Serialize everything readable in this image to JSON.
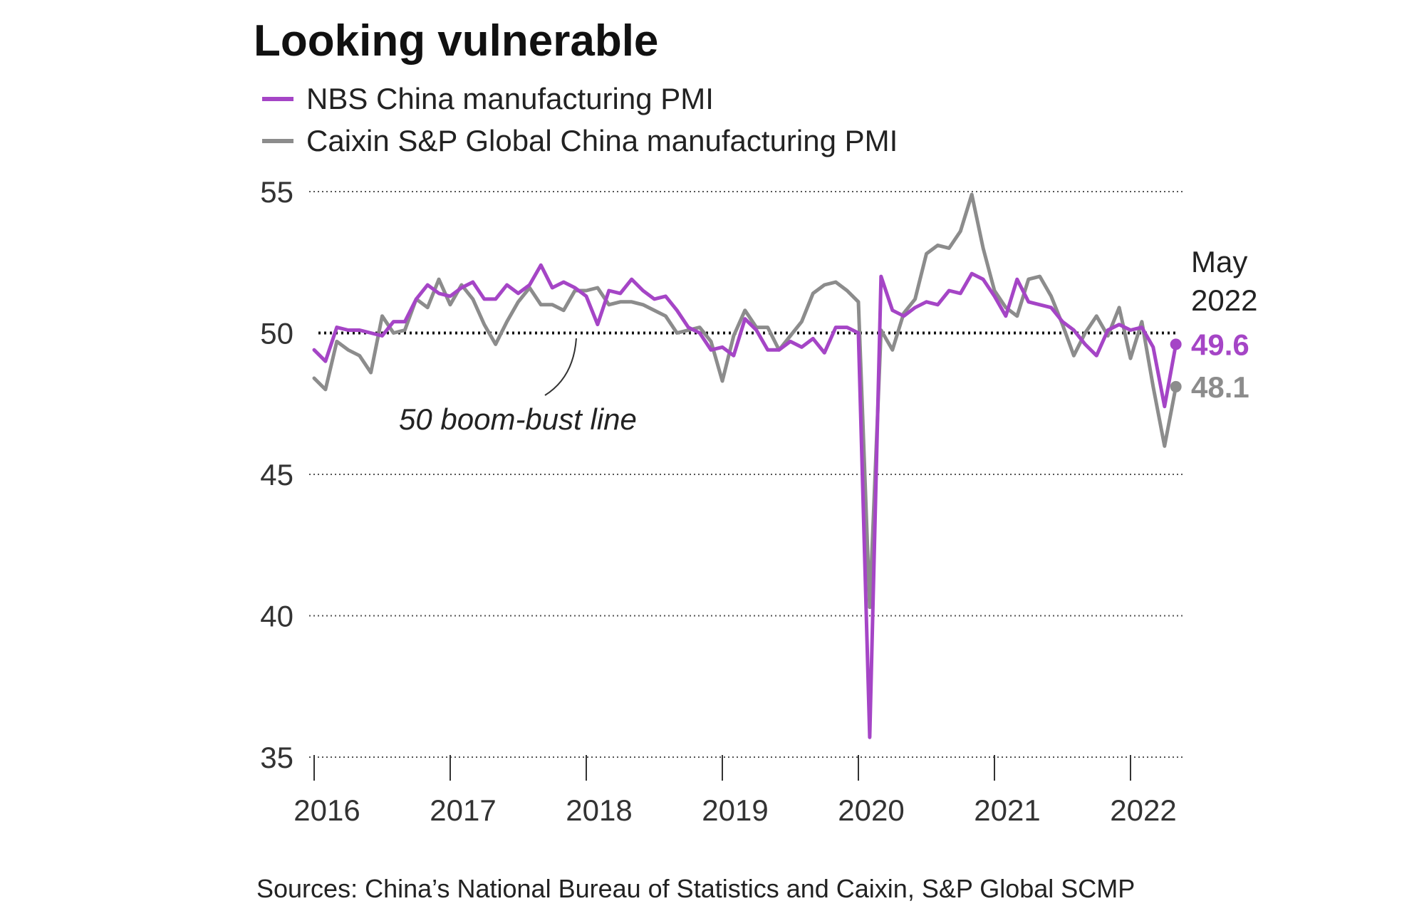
{
  "chart_data": {
    "type": "line",
    "title": "Looking vulnerable",
    "ylim": [
      35,
      55
    ],
    "yticks": [
      35,
      40,
      45,
      50,
      55
    ],
    "yticklabels": [
      "35",
      "40",
      "45",
      "50",
      "55"
    ],
    "xlim": [
      2016,
      2022.42
    ],
    "xticks": [
      2016,
      2017,
      2018,
      2019,
      2020,
      2021,
      2022
    ],
    "xticklabels": [
      "2016",
      "2017",
      "2018",
      "2019",
      "2020",
      "2021",
      "2022"
    ],
    "grid": "horizontal dotted",
    "legend_position": "top-left",
    "reference_line": {
      "value": 50,
      "label": "50 boom-bust line"
    },
    "end_label": {
      "line1": "May",
      "line2": "2022"
    },
    "source": "Sources: China’s National Bureau of Statistics and Caixin, S&P Global  SCMP",
    "x_dates": [
      "2016-01",
      "2016-02",
      "2016-03",
      "2016-04",
      "2016-05",
      "2016-06",
      "2016-07",
      "2016-08",
      "2016-09",
      "2016-10",
      "2016-11",
      "2016-12",
      "2017-01",
      "2017-02",
      "2017-03",
      "2017-04",
      "2017-05",
      "2017-06",
      "2017-07",
      "2017-08",
      "2017-09",
      "2017-10",
      "2017-11",
      "2017-12",
      "2018-01",
      "2018-02",
      "2018-03",
      "2018-04",
      "2018-05",
      "2018-06",
      "2018-07",
      "2018-08",
      "2018-09",
      "2018-10",
      "2018-11",
      "2018-12",
      "2019-01",
      "2019-02",
      "2019-03",
      "2019-04",
      "2019-05",
      "2019-06",
      "2019-07",
      "2019-08",
      "2019-09",
      "2019-10",
      "2019-11",
      "2019-12",
      "2020-01",
      "2020-02",
      "2020-03",
      "2020-04",
      "2020-05",
      "2020-06",
      "2020-07",
      "2020-08",
      "2020-09",
      "2020-10",
      "2020-11",
      "2020-12",
      "2021-01",
      "2021-02",
      "2021-03",
      "2021-04",
      "2021-05",
      "2021-06",
      "2021-07",
      "2021-08",
      "2021-09",
      "2021-10",
      "2021-11",
      "2021-12",
      "2022-01",
      "2022-02",
      "2022-03",
      "2022-04",
      "2022-05"
    ],
    "series": [
      {
        "name": "NBS China manufacturing PMI",
        "color": "#a545c6",
        "end_value_label": "49.6",
        "values": [
          49.4,
          49.0,
          50.2,
          50.1,
          50.1,
          50.0,
          49.9,
          50.4,
          50.4,
          51.2,
          51.7,
          51.4,
          51.3,
          51.6,
          51.8,
          51.2,
          51.2,
          51.7,
          51.4,
          51.7,
          52.4,
          51.6,
          51.8,
          51.6,
          51.3,
          50.3,
          51.5,
          51.4,
          51.9,
          51.5,
          51.2,
          51.3,
          50.8,
          50.2,
          50.0,
          49.4,
          49.5,
          49.2,
          50.5,
          50.1,
          49.4,
          49.4,
          49.7,
          49.5,
          49.8,
          49.3,
          50.2,
          50.2,
          50.0,
          35.7,
          52.0,
          50.8,
          50.6,
          50.9,
          51.1,
          51.0,
          51.5,
          51.4,
          52.1,
          51.9,
          51.3,
          50.6,
          51.9,
          51.1,
          51.0,
          50.9,
          50.4,
          50.1,
          49.6,
          49.2,
          50.1,
          50.3,
          50.1,
          50.2,
          49.5,
          47.4,
          49.6
        ]
      },
      {
        "name": "Caixin S&P Global China manufacturing PMI",
        "color": "#8c8c8c",
        "end_value_label": "48.1",
        "values": [
          48.4,
          48.0,
          49.7,
          49.4,
          49.2,
          48.6,
          50.6,
          50.0,
          50.1,
          51.2,
          50.9,
          51.9,
          51.0,
          51.7,
          51.2,
          50.3,
          49.6,
          50.4,
          51.1,
          51.6,
          51.0,
          51.0,
          50.8,
          51.5,
          51.5,
          51.6,
          51.0,
          51.1,
          51.1,
          51.0,
          50.8,
          50.6,
          50.0,
          50.1,
          50.2,
          49.7,
          48.3,
          49.9,
          50.8,
          50.2,
          50.2,
          49.4,
          49.9,
          50.4,
          51.4,
          51.7,
          51.8,
          51.5,
          51.1,
          40.3,
          50.1,
          49.4,
          50.7,
          51.2,
          52.8,
          53.1,
          53.0,
          53.6,
          54.9,
          53.0,
          51.5,
          50.9,
          50.6,
          51.9,
          52.0,
          51.3,
          50.3,
          49.2,
          50.0,
          50.6,
          49.9,
          50.9,
          49.1,
          50.4,
          48.1,
          46.0,
          48.1
        ]
      }
    ]
  }
}
